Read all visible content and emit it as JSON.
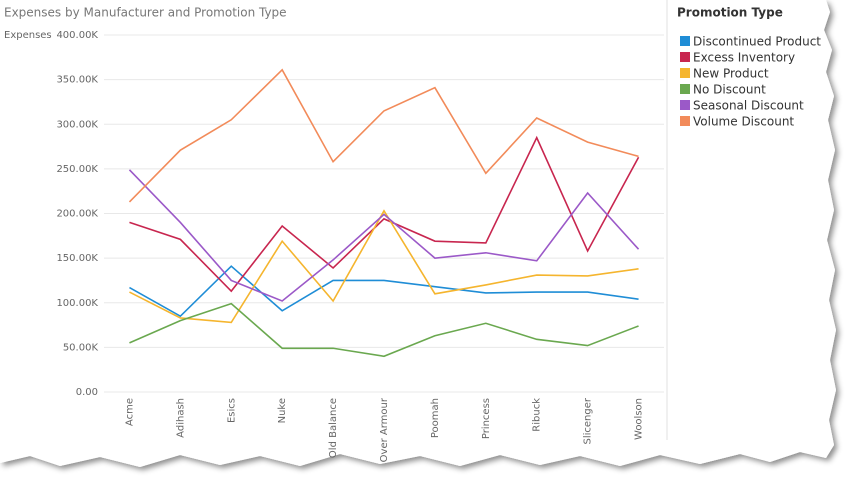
{
  "chart_data": {
    "type": "line",
    "title": "Expenses by Manufacturer and Promotion Type",
    "y_label": "Expenses",
    "legend_title": "Promotion Type",
    "legend_position": "right",
    "grid": true,
    "categories": [
      "Acme",
      "Adihash",
      "Esics",
      "Nuke",
      "Old Balance",
      "Over Armour",
      "Poomah",
      "Princess",
      "Ribuck",
      "Slicenger",
      "Woolson"
    ],
    "ylim": [
      0,
      400000
    ],
    "yticks": [
      {
        "value": 0,
        "label": "0.00"
      },
      {
        "value": 50000,
        "label": "50.00K"
      },
      {
        "value": 100000,
        "label": "100.00K"
      },
      {
        "value": 150000,
        "label": "150.00K"
      },
      {
        "value": 200000,
        "label": "200.00K"
      },
      {
        "value": 250000,
        "label": "250.00K"
      },
      {
        "value": 300000,
        "label": "300.00K"
      },
      {
        "value": 350000,
        "label": "350.00K"
      },
      {
        "value": 400000,
        "label": "400.00K"
      }
    ],
    "series": [
      {
        "name": "Discontinued Product",
        "color": "#1f8dd6",
        "values": [
          117000,
          85000,
          141000,
          91000,
          125000,
          125000,
          118000,
          111000,
          112000,
          112000,
          104000
        ]
      },
      {
        "name": "Excess Inventory",
        "color": "#c8264f",
        "values": [
          190000,
          171000,
          113000,
          186000,
          139000,
          194000,
          169000,
          167000,
          285000,
          158000,
          263000
        ]
      },
      {
        "name": "New Product",
        "color": "#f5b52e",
        "values": [
          112000,
          83000,
          78000,
          169000,
          102000,
          203000,
          110000,
          120000,
          131000,
          130000,
          138000
        ]
      },
      {
        "name": "No Discount",
        "color": "#6aa84f",
        "values": [
          55000,
          80000,
          99000,
          49000,
          49000,
          40000,
          63000,
          77000,
          59000,
          52000,
          74000
        ]
      },
      {
        "name": "Seasonal Discount",
        "color": "#9b59c8",
        "values": [
          249000,
          190000,
          125000,
          102000,
          148000,
          199000,
          150000,
          156000,
          147000,
          223000,
          160000
        ]
      },
      {
        "name": "Volume Discount",
        "color": "#f28b5a",
        "values": [
          213000,
          271000,
          305000,
          361000,
          258000,
          315000,
          341000,
          245000,
          307000,
          280000,
          264000
        ]
      }
    ]
  }
}
